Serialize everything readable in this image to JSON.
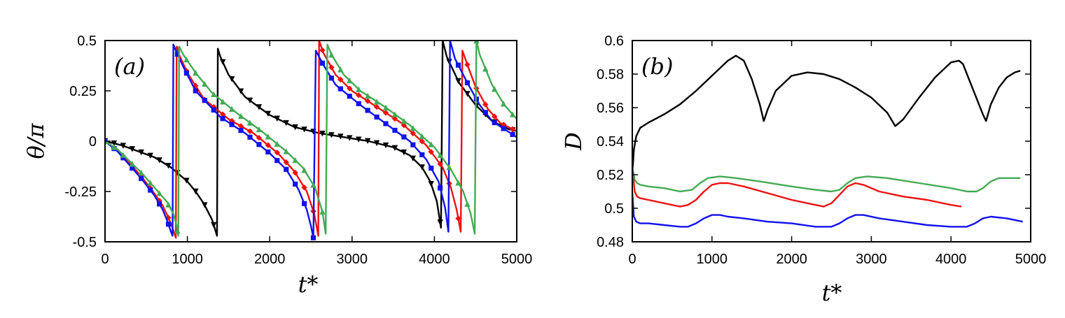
{
  "chart_data": [
    {
      "type": "line",
      "panel_label": "(a)",
      "xlabel": "t*",
      "ylabel": "θ/π",
      "xlim": [
        0,
        5000
      ],
      "ylim": [
        -0.5,
        0.5
      ],
      "xticks": [
        0,
        1000,
        2000,
        3000,
        4000,
        5000
      ],
      "yticks": [
        -0.5,
        -0.25,
        0,
        0.25,
        0.5
      ],
      "ytick_labels": [
        "-0.5",
        "-0.25",
        "0",
        "0.25",
        "0.5"
      ],
      "grid": false,
      "series": [
        {
          "color": "#000000",
          "marker": "triangle-down",
          "x": [
            0,
            200,
            400,
            600,
            800,
            1000,
            1100,
            1200,
            1300,
            1360,
            1370,
            1400,
            1500,
            1700,
            2000,
            2300,
            2600,
            2900,
            3200,
            3500,
            3700,
            3850,
            3950,
            4030,
            4080,
            4100,
            4150,
            4300,
            4500,
            4700,
            4900,
            5000
          ],
          "y": [
            0,
            -0.02,
            -0.05,
            -0.08,
            -0.13,
            -0.2,
            -0.25,
            -0.31,
            -0.39,
            -0.47,
            0.46,
            0.42,
            0.33,
            0.22,
            0.13,
            0.07,
            0.04,
            0.02,
            0,
            -0.03,
            -0.07,
            -0.13,
            -0.2,
            -0.3,
            -0.43,
            0.5,
            0.42,
            0.29,
            0.18,
            0.1,
            0.06,
            0.05
          ]
        },
        {
          "color": "#ee1111",
          "marker": "diamond",
          "x": [
            0,
            150,
            300,
            450,
            600,
            700,
            770,
            820,
            860,
            870,
            900,
            1000,
            1200,
            1500,
            1800,
            2100,
            2300,
            2450,
            2540,
            2590,
            2600,
            2650,
            2800,
            3000,
            3300,
            3600,
            3900,
            4100,
            4200,
            4270,
            4320,
            4340,
            4400,
            4500,
            4650,
            4800,
            5000
          ],
          "y": [
            0,
            -0.05,
            -0.11,
            -0.18,
            -0.26,
            -0.32,
            -0.38,
            -0.43,
            -0.48,
            0.47,
            0.43,
            0.34,
            0.21,
            0.11,
            0.04,
            -0.06,
            -0.15,
            -0.25,
            -0.36,
            -0.47,
            0.5,
            0.44,
            0.33,
            0.25,
            0.17,
            0.09,
            -0.02,
            -0.13,
            -0.23,
            -0.34,
            -0.45,
            0.45,
            0.38,
            0.27,
            0.16,
            0.09,
            0.05
          ]
        },
        {
          "color": "#1111ee",
          "marker": "square",
          "x": [
            0,
            150,
            300,
            450,
            600,
            700,
            760,
            800,
            820,
            830,
            860,
            950,
            1100,
            1400,
            1700,
            2000,
            2200,
            2350,
            2450,
            2500,
            2530,
            2560,
            2650,
            2800,
            3100,
            3400,
            3700,
            3900,
            4050,
            4130,
            4170,
            4190,
            4250,
            4400,
            4550,
            4700,
            4850,
            5000
          ],
          "y": [
            0,
            -0.05,
            -0.12,
            -0.19,
            -0.27,
            -0.34,
            -0.4,
            -0.45,
            -0.47,
            0.48,
            0.45,
            0.37,
            0.25,
            0.12,
            0.04,
            -0.06,
            -0.14,
            -0.24,
            -0.34,
            -0.42,
            -0.48,
            0.45,
            0.38,
            0.28,
            0.18,
            0.09,
            0,
            -0.09,
            -0.2,
            -0.33,
            -0.45,
            0.5,
            0.41,
            0.29,
            0.18,
            0.1,
            0.06,
            0.02
          ]
        },
        {
          "color": "#44aa55",
          "marker": "triangle-up",
          "x": [
            0,
            150,
            300,
            450,
            600,
            750,
            830,
            870,
            890,
            900,
            950,
            1100,
            1300,
            1600,
            1900,
            2200,
            2400,
            2550,
            2640,
            2680,
            2700,
            2750,
            2900,
            3100,
            3400,
            3700,
            4000,
            4200,
            4350,
            4440,
            4490,
            4510,
            4550,
            4700,
            4850,
            5000
          ],
          "y": [
            0,
            -0.04,
            -0.1,
            -0.16,
            -0.23,
            -0.3,
            -0.36,
            -0.42,
            -0.47,
            0.47,
            0.43,
            0.34,
            0.24,
            0.14,
            0.05,
            -0.05,
            -0.13,
            -0.23,
            -0.35,
            -0.46,
            0.48,
            0.43,
            0.33,
            0.25,
            0.17,
            0.08,
            -0.03,
            -0.14,
            -0.25,
            -0.36,
            -0.46,
            0.5,
            0.43,
            0.28,
            0.18,
            0.11
          ]
        }
      ]
    },
    {
      "type": "line",
      "panel_label": "(b)",
      "xlabel": "t*",
      "ylabel": "D",
      "xlim": [
        0,
        5000
      ],
      "ylim": [
        0.48,
        0.6
      ],
      "xticks": [
        0,
        1000,
        2000,
        3000,
        4000,
        5000
      ],
      "yticks": [
        0.48,
        0.5,
        0.52,
        0.54,
        0.56,
        0.58,
        0.6
      ],
      "ytick_labels": [
        "0.48",
        "0.5",
        "0.52",
        "0.54",
        "0.56",
        "0.58",
        "0.6"
      ],
      "grid": false,
      "series": [
        {
          "color": "#000000",
          "x": [
            0,
            20,
            50,
            100,
            200,
            400,
            600,
            800,
            1000,
            1200,
            1300,
            1400,
            1500,
            1600,
            1650,
            1700,
            1800,
            2000,
            2200,
            2400,
            2600,
            2800,
            3000,
            3200,
            3300,
            3400,
            3600,
            3800,
            4000,
            4100,
            4150,
            4200,
            4300,
            4400,
            4440,
            4500,
            4600,
            4700,
            4800,
            4870
          ],
          "y": [
            0.52,
            0.535,
            0.543,
            0.548,
            0.551,
            0.556,
            0.562,
            0.57,
            0.579,
            0.588,
            0.591,
            0.588,
            0.577,
            0.562,
            0.552,
            0.559,
            0.57,
            0.579,
            0.581,
            0.58,
            0.577,
            0.572,
            0.566,
            0.557,
            0.549,
            0.553,
            0.566,
            0.578,
            0.587,
            0.588,
            0.586,
            0.58,
            0.568,
            0.556,
            0.552,
            0.562,
            0.572,
            0.578,
            0.581,
            0.582
          ]
        },
        {
          "color": "#44aa55",
          "x": [
            0,
            30,
            60,
            100,
            200,
            400,
            600,
            750,
            850,
            950,
            1100,
            1300,
            1600,
            2000,
            2300,
            2500,
            2600,
            2700,
            2800,
            2950,
            3200,
            3600,
            4000,
            4200,
            4320,
            4400,
            4500,
            4600,
            4700,
            4870
          ],
          "y": [
            0.525,
            0.517,
            0.515,
            0.514,
            0.513,
            0.512,
            0.51,
            0.511,
            0.515,
            0.518,
            0.519,
            0.518,
            0.516,
            0.513,
            0.511,
            0.51,
            0.511,
            0.515,
            0.518,
            0.519,
            0.518,
            0.515,
            0.512,
            0.51,
            0.51,
            0.512,
            0.516,
            0.518,
            0.518,
            0.518
          ]
        },
        {
          "color": "#ee1111",
          "x": [
            0,
            30,
            60,
            100,
            200,
            400,
            600,
            700,
            800,
            900,
            1000,
            1100,
            1200,
            1400,
            1700,
            2000,
            2200,
            2400,
            2500,
            2600,
            2700,
            2800,
            2900,
            3100,
            3400,
            3700,
            4000,
            4130
          ],
          "y": [
            0.525,
            0.51,
            0.507,
            0.506,
            0.505,
            0.503,
            0.501,
            0.502,
            0.505,
            0.51,
            0.514,
            0.515,
            0.515,
            0.513,
            0.509,
            0.505,
            0.503,
            0.501,
            0.503,
            0.508,
            0.513,
            0.515,
            0.514,
            0.51,
            0.507,
            0.505,
            0.502,
            0.501
          ]
        },
        {
          "color": "#1111ee",
          "x": [
            0,
            20,
            50,
            100,
            200,
            400,
            600,
            700,
            800,
            900,
            1000,
            1100,
            1200,
            1400,
            1700,
            2000,
            2300,
            2500,
            2600,
            2700,
            2800,
            2900,
            3100,
            3400,
            3700,
            4000,
            4200,
            4300,
            4400,
            4500,
            4700,
            4900
          ],
          "y": [
            0.51,
            0.495,
            0.492,
            0.491,
            0.491,
            0.49,
            0.489,
            0.489,
            0.491,
            0.494,
            0.496,
            0.496,
            0.495,
            0.494,
            0.492,
            0.491,
            0.489,
            0.489,
            0.491,
            0.494,
            0.496,
            0.496,
            0.494,
            0.492,
            0.49,
            0.489,
            0.489,
            0.491,
            0.494,
            0.495,
            0.494,
            0.492
          ]
        }
      ]
    }
  ]
}
